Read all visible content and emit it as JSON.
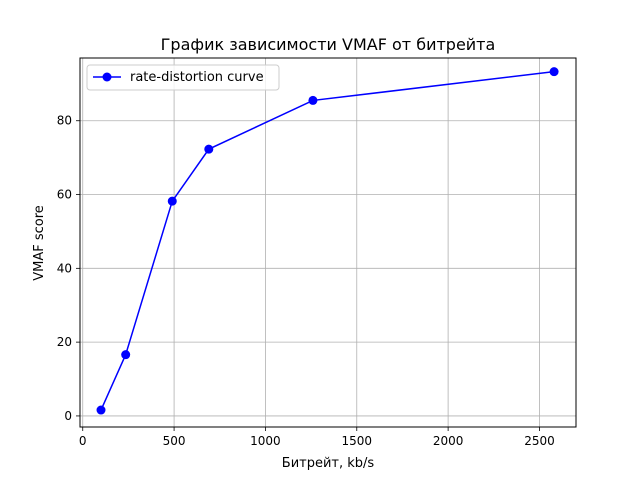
{
  "chart_data": {
    "type": "line",
    "title": "График зависимости VMAF от битрейта",
    "xlabel": "Битрейт, kb/s",
    "ylabel": "VMAF score",
    "xlim": [
      -15,
      2700
    ],
    "ylim": [
      -3,
      97
    ],
    "xticks": [
      0,
      500,
      1000,
      1500,
      2000,
      2500
    ],
    "yticks": [
      0,
      20,
      40,
      60,
      80
    ],
    "grid": true,
    "legend_position": "top-left",
    "series": [
      {
        "name": "rate-distortion curve",
        "color": "#0000ff",
        "marker": "circle",
        "x": [
          100,
          235,
          490,
          690,
          1260,
          2580
        ],
        "y": [
          1.6,
          16.6,
          58.2,
          72.3,
          85.5,
          93.3
        ]
      }
    ]
  }
}
